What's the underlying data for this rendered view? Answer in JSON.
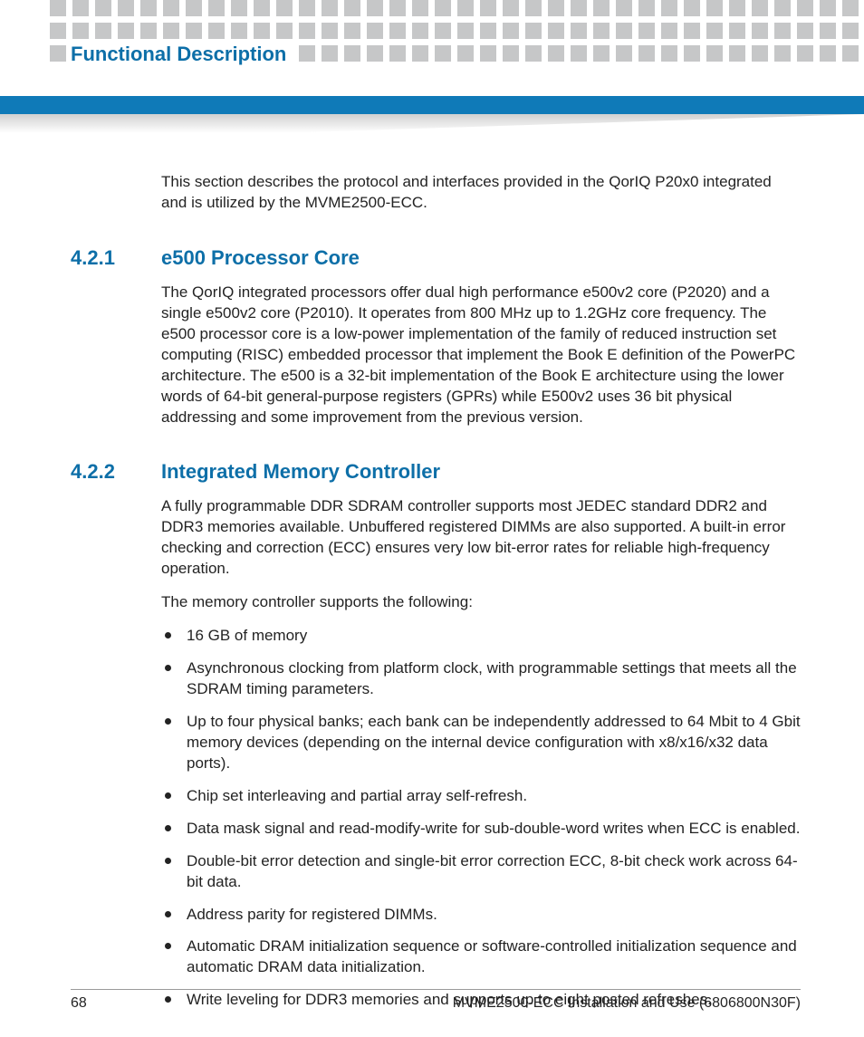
{
  "header": {
    "chapter_title": "Functional Description",
    "title_color": "#0d6fa8",
    "square_color": "#c6c7c8",
    "bar_color": "#0f7ab8",
    "square_rows": 3,
    "squares_per_row": 36
  },
  "intro": {
    "text": "This section describes the protocol and interfaces provided in the QorIQ P20x0 integrated and is utilized by the MVME2500-ECC."
  },
  "sections": [
    {
      "number": "4.2.1",
      "title": "e500 Processor Core",
      "heading_color": "#0d6fa8",
      "paragraphs": [
        "The QorIQ integrated processors offer dual high performance e500v2 core (P2020) and a single e500v2 core (P2010). It operates from 800 MHz up to 1.2GHz core frequency.  The e500 processor core is a low-power implementation of the family of reduced instruction set computing (RISC) embedded processor that implement the Book E definition of the PowerPC architecture. The e500 is a 32-bit implementation of the Book E architecture using the lower words of 64-bit general-purpose registers (GPRs) while E500v2 uses 36 bit physical addressing and some improvement from the previous version."
      ],
      "bullets": []
    },
    {
      "number": "4.2.2",
      "title": "Integrated Memory Controller",
      "heading_color": "#0d6fa8",
      "paragraphs": [
        "A fully programmable DDR SDRAM controller supports most JEDEC standard DDR2 and DDR3 memories available. Unbuffered registered DIMMs are also supported. A built-in error checking and correction (ECC) ensures very low bit-error rates for reliable high-frequency operation.",
        "The memory controller supports the following:"
      ],
      "bullets": [
        "16 GB of memory",
        "Asynchronous clocking from platform clock, with programmable settings that meets all the SDRAM timing parameters.",
        "Up to four physical banks; each bank can be independently addressed to 64 Mbit to 4 Gbit memory devices (depending on the internal device configuration with x8/x16/x32 data ports).",
        "Chip set interleaving and partial array self-refresh.",
        "Data mask signal and read-modify-write for sub-double-word writes when ECC is enabled.",
        "Double-bit error detection and single-bit error correction ECC, 8-bit check work across 64-bit data.",
        "Address parity for registered DIMMs.",
        "Automatic DRAM initialization sequence or software-controlled initialization sequence and automatic DRAM data initialization.",
        "Write leveling for DDR3 memories and supports up to eight posted refreshes."
      ]
    }
  ],
  "footer": {
    "page_number": "68",
    "doc_title": "MVME2500-ECC Installation and Use (6806800N30F)"
  }
}
